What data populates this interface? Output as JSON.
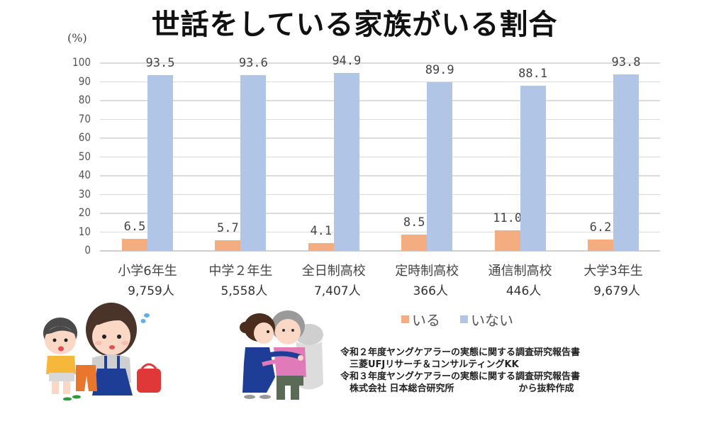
{
  "title": "世話をしている家族がいる割合",
  "unit_label": "(%)",
  "legend": [
    {
      "label": "いる",
      "color": "#f4ad80"
    },
    {
      "label": "いない",
      "color": "#b1c5e6"
    }
  ],
  "source_lines": [
    "令和２年度ヤングケアラーの実態に関する調査研究報告書",
    "　三菱UFJリサーチ＆コンサルティングKK",
    "令和３年度ヤングケアラーの実態に関する調査研究報告書",
    "　株式会社 日本総合研究所　　　　　　　から抜粋作成"
  ],
  "chart_data": {
    "type": "bar",
    "title": "世話をしている家族がいる割合",
    "xlabel": "",
    "ylabel": "(%)",
    "ylim": [
      0,
      100
    ],
    "yticks": [
      0,
      10,
      20,
      30,
      40,
      50,
      60,
      70,
      80,
      90,
      100
    ],
    "grid": true,
    "legend_position": "bottom",
    "categories": [
      "小学6年生",
      "中学２年生",
      "全日制高校",
      "定時制高校",
      "通信制高校",
      "大学3年生"
    ],
    "sample_sizes": [
      "9,759人",
      "5,558人",
      "7,407人",
      "366人",
      "446人",
      "9,679人"
    ],
    "series": [
      {
        "name": "いる",
        "color": "#f4ad80",
        "values": [
          6.5,
          5.7,
          4.1,
          8.5,
          11.0,
          6.2
        ],
        "labels": [
          "6.5",
          "5.7",
          "4.1",
          "8.5",
          "11.0",
          "6.2"
        ]
      },
      {
        "name": "いない",
        "color": "#b1c5e6",
        "values": [
          93.5,
          93.6,
          94.9,
          89.9,
          88.1,
          93.8
        ],
        "labels": [
          "93.5",
          "93.6",
          "94.9",
          "89.9",
          "88.1",
          "93.8"
        ]
      }
    ]
  },
  "illustrations": [
    {
      "name": "mother-child-illustration"
    },
    {
      "name": "caregiver-elderly-illustration"
    }
  ]
}
